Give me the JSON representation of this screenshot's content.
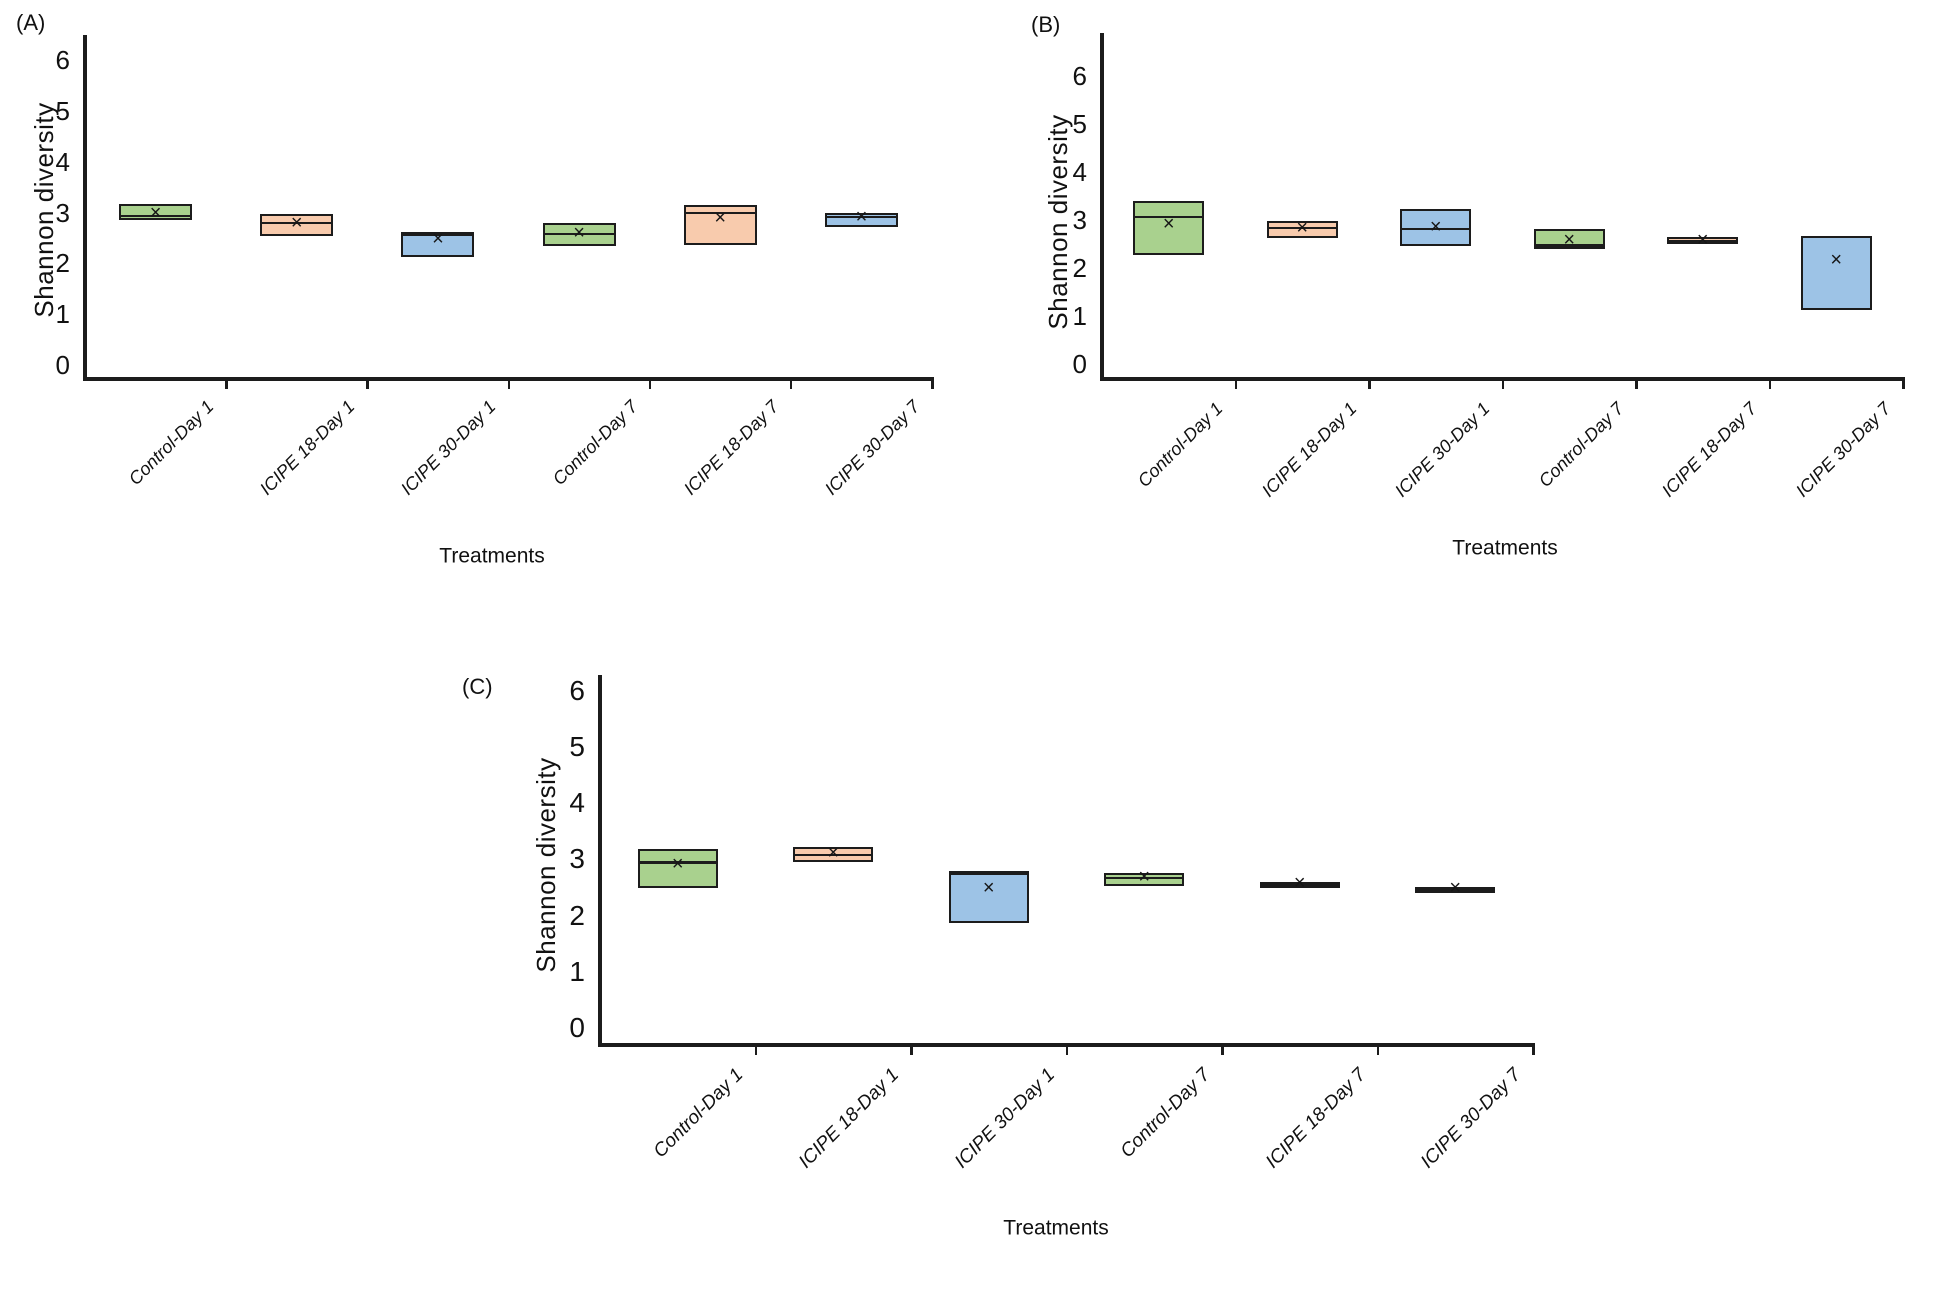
{
  "figure": {
    "background": "#ffffff"
  },
  "colors": {
    "green": "#a9d18e",
    "orange": "#f8cbad",
    "blue": "#9dc3e6",
    "axis": "#1c1c1c",
    "text": "#111111"
  },
  "mean_marker": "×",
  "chart_data": [
    {
      "type": "box",
      "panel_label": "(A)",
      "ylabel": "Shannon diversity",
      "xlabel": "Treatments",
      "ylim": [
        0,
        6
      ],
      "yticks": [
        0,
        1,
        2,
        3,
        4,
        5,
        6
      ],
      "grid": false,
      "legend": null,
      "categories": [
        "Control-Day 1",
        "ICIPE 18-Day 1",
        "ICIPE 30-Day 1",
        "Control-Day 7",
        "ICIPE 18-Day 7",
        "ICIPE 30-Day 7"
      ],
      "boxes": [
        {
          "category": "Control-Day 1",
          "color": "green",
          "q1": 2.83,
          "median": 2.91,
          "q3": 3.15,
          "mean": 2.96
        },
        {
          "category": "ICIPE 18-Day 1",
          "color": "orange",
          "q1": 2.51,
          "median": 2.78,
          "q3": 2.95,
          "mean": 2.76
        },
        {
          "category": "ICIPE 30-Day 1",
          "color": "blue",
          "q1": 2.11,
          "median": 2.54,
          "q3": 2.6,
          "mean": 2.45
        },
        {
          "category": "Control-Day 7",
          "color": "green",
          "q1": 2.32,
          "median": 2.56,
          "q3": 2.78,
          "mean": 2.55
        },
        {
          "category": "ICIPE 18-Day 7",
          "color": "orange",
          "q1": 2.34,
          "median": 2.97,
          "q3": 3.13,
          "mean": 2.85
        },
        {
          "category": "ICIPE 30-Day 7",
          "color": "blue",
          "q1": 2.69,
          "median": 2.89,
          "q3": 2.97,
          "mean": 2.87
        }
      ]
    },
    {
      "type": "box",
      "panel_label": "(B)",
      "ylabel": "Shannon diversity",
      "xlabel": "Treatments",
      "ylim": [
        0,
        6
      ],
      "yticks": [
        0,
        1,
        2,
        3,
        4,
        5,
        6
      ],
      "grid": false,
      "legend": null,
      "categories": [
        "Control-Day 1",
        "ICIPE 18-Day 1",
        "ICIPE 30-Day 1",
        "Control-Day 7",
        "ICIPE 18-Day 7",
        "ICIPE 30-Day 7"
      ],
      "boxes": [
        {
          "category": "Control-Day 1",
          "color": "green",
          "q1": 2.25,
          "median": 3.04,
          "q3": 3.38,
          "mean": 2.88
        },
        {
          "category": "ICIPE 18-Day 1",
          "color": "orange",
          "q1": 2.6,
          "median": 2.81,
          "q3": 2.96,
          "mean": 2.8
        },
        {
          "category": "ICIPE 30-Day 1",
          "color": "blue",
          "q1": 2.44,
          "median": 2.79,
          "q3": 3.21,
          "mean": 2.82
        },
        {
          "category": "Control-Day 7",
          "color": "green",
          "q1": 2.38,
          "median": 2.45,
          "q3": 2.8,
          "mean": 2.55
        },
        {
          "category": "ICIPE 18-Day 7",
          "color": "orange",
          "q1": 2.47,
          "median": 2.53,
          "q3": 2.62,
          "mean": 2.54
        },
        {
          "category": "ICIPE 30-Day 7",
          "color": "blue",
          "q1": 1.1,
          "median": null,
          "q3": 2.64,
          "mean": 2.12
        }
      ]
    },
    {
      "type": "box",
      "panel_label": "(C)",
      "ylabel": "Shannon diversity",
      "xlabel": "Treatments",
      "ylim": [
        0,
        6
      ],
      "yticks": [
        0,
        1,
        2,
        3,
        4,
        5,
        6
      ],
      "grid": false,
      "legend": null,
      "categories": [
        "Control-Day 1",
        "ICIPE 18-Day 1",
        "ICIPE 30-Day 1",
        "Control-Day 7",
        "ICIPE 18-Day 7",
        "ICIPE 30-Day 7"
      ],
      "boxes": [
        {
          "category": "Control-Day 1",
          "color": "green",
          "q1": 2.47,
          "median": 2.93,
          "q3": 3.16,
          "mean": 2.88
        },
        {
          "category": "ICIPE 18-Day 1",
          "color": "orange",
          "q1": 2.94,
          "median": 3.06,
          "q3": 3.2,
          "mean": 3.07
        },
        {
          "category": "ICIPE 30-Day 1",
          "color": "blue",
          "q1": 1.85,
          "median": 2.72,
          "q3": 2.78,
          "mean": 2.46
        },
        {
          "category": "Control-Day 7",
          "color": "green",
          "q1": 2.51,
          "median": 2.65,
          "q3": 2.74,
          "mean": 2.66
        },
        {
          "category": "ICIPE 18-Day 7",
          "color": "orange",
          "q1": 2.47,
          "median": 2.53,
          "q3": 2.58,
          "mean": 2.54
        },
        {
          "category": "ICIPE 30-Day 7",
          "color": "blue",
          "q1": 2.38,
          "median": 2.44,
          "q3": 2.49,
          "mean": 2.46
        }
      ]
    }
  ]
}
